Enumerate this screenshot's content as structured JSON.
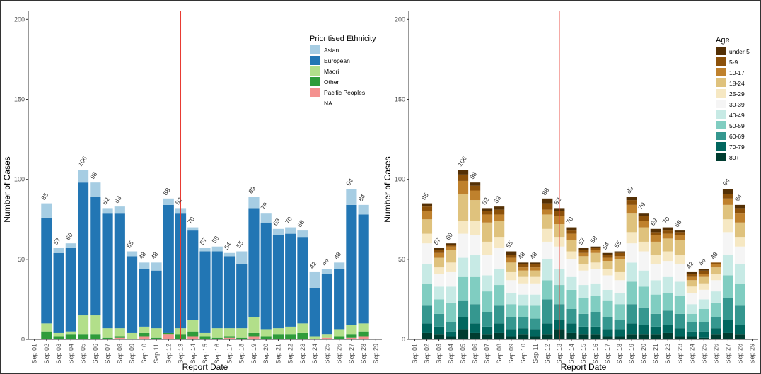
{
  "chart_data": [
    {
      "type": "bar",
      "stacked": true,
      "xlabel": "Report Date",
      "ylabel": "Number of Cases",
      "ylim": [
        0,
        205
      ],
      "yticks": [
        0,
        50,
        100,
        150,
        200
      ],
      "grid": false,
      "legend_position": "top-right",
      "legend_title": "Prioritised Ethnicity",
      "categories": [
        "Sep 01",
        "Sep 02",
        "Sep 03",
        "Sep 04",
        "Sep 05",
        "Sep 06",
        "Sep 07",
        "Sep 08",
        "Sep 09",
        "Sep 10",
        "Sep 11",
        "Sep 12",
        "Sep 13",
        "Sep 14",
        "Sep 15",
        "Sep 16",
        "Sep 17",
        "Sep 18",
        "Sep 19",
        "Sep 20",
        "Sep 21",
        "Sep 22",
        "Sep 23",
        "Sep 24",
        "Sep 25",
        "Sep 26",
        "Sep 27",
        "Sep 28",
        "Sep 29"
      ],
      "totals": [
        0,
        85,
        57,
        60,
        106,
        98,
        82,
        83,
        55,
        48,
        48,
        88,
        82,
        70,
        57,
        58,
        54,
        55,
        89,
        79,
        69,
        70,
        68,
        42,
        44,
        48,
        94,
        84,
        0
      ],
      "total_labels": [
        "",
        "85",
        "57",
        "60",
        "106",
        "98",
        "82",
        "83",
        "55",
        "48",
        "48",
        "88",
        "82",
        "70",
        "57",
        "58",
        "54",
        "55",
        "89",
        "79",
        "69",
        "70",
        "68",
        "42",
        "44",
        "48",
        "94",
        "84",
        ""
      ],
      "reference_line": {
        "category": "Sep 13",
        "color": "#e8382f"
      },
      "series": [
        {
          "name": "Pacific Peoples",
          "color": "#f4918f",
          "values": [
            0,
            0,
            0,
            0,
            0,
            0,
            0,
            1,
            0,
            2,
            0,
            3,
            0,
            2,
            0,
            0,
            1,
            0,
            2,
            0,
            0,
            0,
            0,
            0,
            1,
            0,
            1,
            2,
            0
          ]
        },
        {
          "name": "Other",
          "color": "#2f9c3a",
          "values": [
            0,
            5,
            2,
            3,
            3,
            3,
            1,
            1,
            0,
            2,
            1,
            1,
            3,
            3,
            2,
            1,
            1,
            1,
            2,
            2,
            3,
            3,
            4,
            0,
            0,
            2,
            2,
            3,
            0
          ]
        },
        {
          "name": "Maori",
          "color": "#b2df8a",
          "values": [
            0,
            5,
            2,
            2,
            12,
            12,
            6,
            5,
            4,
            4,
            6,
            0,
            4,
            7,
            2,
            6,
            5,
            6,
            10,
            4,
            4,
            5,
            6,
            2,
            2,
            4,
            6,
            5,
            0
          ]
        },
        {
          "name": "European",
          "color": "#2276b4",
          "values": [
            0,
            66,
            50,
            52,
            83,
            74,
            72,
            72,
            48,
            36,
            36,
            80,
            72,
            56,
            51,
            48,
            45,
            40,
            68,
            67,
            58,
            58,
            54,
            30,
            38,
            38,
            75,
            68,
            0
          ]
        },
        {
          "name": "Asian",
          "color": "#a6cde3",
          "values": [
            0,
            9,
            3,
            3,
            8,
            9,
            3,
            4,
            3,
            4,
            5,
            4,
            3,
            2,
            2,
            3,
            2,
            8,
            7,
            6,
            4,
            4,
            4,
            10,
            3,
            4,
            10,
            6,
            0
          ]
        },
        {
          "name": "NA",
          "color": "#ffffff",
          "values": [
            0,
            0,
            0,
            0,
            0,
            0,
            0,
            0,
            0,
            0,
            0,
            0,
            0,
            0,
            0,
            0,
            0,
            0,
            0,
            0,
            0,
            0,
            0,
            0,
            0,
            0,
            0,
            0,
            0
          ]
        }
      ]
    },
    {
      "type": "bar",
      "stacked": true,
      "xlabel": "Report Date",
      "ylabel": "Number of Cases",
      "ylim": [
        0,
        205
      ],
      "yticks": [
        0,
        50,
        100,
        150,
        200
      ],
      "grid": false,
      "legend_position": "top-right",
      "legend_title": "Age",
      "categories": [
        "Sep 01",
        "Sep 02",
        "Sep 03",
        "Sep 04",
        "Sep 05",
        "Sep 06",
        "Sep 07",
        "Sep 08",
        "Sep 09",
        "Sep 10",
        "Sep 11",
        "Sep 12",
        "Sep 13",
        "Sep 14",
        "Sep 15",
        "Sep 16",
        "Sep 17",
        "Sep 18",
        "Sep 19",
        "Sep 20",
        "Sep 21",
        "Sep 22",
        "Sep 23",
        "Sep 24",
        "Sep 25",
        "Sep 26",
        "Sep 27",
        "Sep 28",
        "Sep 29"
      ],
      "totals": [
        0,
        85,
        57,
        60,
        106,
        98,
        82,
        83,
        55,
        48,
        48,
        88,
        82,
        70,
        57,
        58,
        54,
        55,
        89,
        79,
        69,
        70,
        68,
        42,
        44,
        48,
        94,
        84,
        0
      ],
      "total_labels": [
        "",
        "85",
        "57",
        "60",
        "106",
        "98",
        "82",
        "83",
        "55",
        "48",
        "48",
        "88",
        "82",
        "70",
        "57",
        "58",
        "54",
        "55",
        "89",
        "79",
        "69",
        "70",
        "68",
        "42",
        "44",
        "48",
        "94",
        "84",
        ""
      ],
      "reference_line": {
        "category": "Sep 13",
        "color": "#e8382f"
      },
      "series": [
        {
          "name": "80+",
          "color": "#003c30",
          "values": [
            0,
            4,
            3,
            2,
            6,
            4,
            3,
            4,
            2,
            3,
            2,
            3,
            6,
            4,
            3,
            3,
            2,
            2,
            3,
            3,
            3,
            4,
            2,
            2,
            1,
            3,
            4,
            3,
            0
          ]
        },
        {
          "name": "70-79",
          "color": "#01665e",
          "values": [
            0,
            6,
            5,
            3,
            8,
            6,
            5,
            6,
            4,
            4,
            4,
            7,
            6,
            6,
            5,
            5,
            4,
            4,
            7,
            6,
            5,
            5,
            5,
            3,
            4,
            4,
            8,
            6,
            0
          ]
        },
        {
          "name": "60-69",
          "color": "#35978f",
          "values": [
            0,
            11,
            8,
            6,
            10,
            12,
            9,
            11,
            8,
            7,
            7,
            15,
            10,
            9,
            8,
            9,
            8,
            6,
            12,
            11,
            8,
            9,
            9,
            6,
            6,
            7,
            14,
            12,
            0
          ]
        },
        {
          "name": "50-59",
          "color": "#80cdc1",
          "values": [
            0,
            14,
            9,
            12,
            15,
            17,
            13,
            13,
            8,
            7,
            8,
            12,
            12,
            12,
            10,
            10,
            10,
            10,
            14,
            13,
            12,
            11,
            11,
            5,
            8,
            9,
            14,
            14,
            0
          ]
        },
        {
          "name": "40-49",
          "color": "#c7eae5",
          "values": [
            0,
            12,
            8,
            10,
            12,
            14,
            10,
            10,
            7,
            7,
            7,
            13,
            10,
            8,
            8,
            8,
            7,
            7,
            12,
            10,
            9,
            10,
            9,
            6,
            6,
            7,
            13,
            12,
            0
          ]
        },
        {
          "name": "30-39",
          "color": "#f5f5f5",
          "values": [
            0,
            13,
            8,
            9,
            15,
            12,
            13,
            13,
            8,
            7,
            7,
            11,
            14,
            11,
            9,
            9,
            9,
            8,
            12,
            12,
            10,
            10,
            11,
            7,
            6,
            7,
            14,
            11,
            0
          ]
        },
        {
          "name": "25-29",
          "color": "#f6e8c3",
          "values": [
            0,
            6,
            4,
            6,
            8,
            9,
            8,
            7,
            5,
            4,
            4,
            8,
            6,
            5,
            4,
            4,
            4,
            5,
            7,
            6,
            6,
            6,
            6,
            4,
            4,
            4,
            8,
            6,
            0
          ]
        },
        {
          "name": "18-24",
          "color": "#dfc27d",
          "values": [
            0,
            9,
            6,
            8,
            17,
            13,
            12,
            10,
            6,
            4,
            4,
            9,
            8,
            7,
            5,
            6,
            5,
            8,
            12,
            9,
            8,
            8,
            9,
            4,
            4,
            4,
            9,
            9,
            0
          ]
        },
        {
          "name": "10-17",
          "color": "#bf812d",
          "values": [
            0,
            5,
            3,
            2,
            8,
            6,
            5,
            4,
            3,
            2,
            2,
            3,
            5,
            4,
            2,
            2,
            2,
            2,
            5,
            4,
            4,
            3,
            3,
            2,
            2,
            2,
            4,
            6,
            0
          ]
        },
        {
          "name": "5-9",
          "color": "#8c510a",
          "values": [
            0,
            3,
            2,
            1,
            4,
            3,
            2,
            3,
            2,
            2,
            2,
            4,
            3,
            2,
            2,
            1,
            2,
            2,
            3,
            3,
            2,
            2,
            2,
            2,
            2,
            1,
            3,
            3,
            0
          ]
        },
        {
          "name": "under 5",
          "color": "#543005",
          "values": [
            0,
            2,
            1,
            1,
            3,
            2,
            2,
            2,
            2,
            1,
            1,
            3,
            2,
            2,
            1,
            1,
            1,
            1,
            2,
            2,
            2,
            2,
            1,
            1,
            1,
            0,
            3,
            2,
            0
          ]
        }
      ]
    }
  ]
}
